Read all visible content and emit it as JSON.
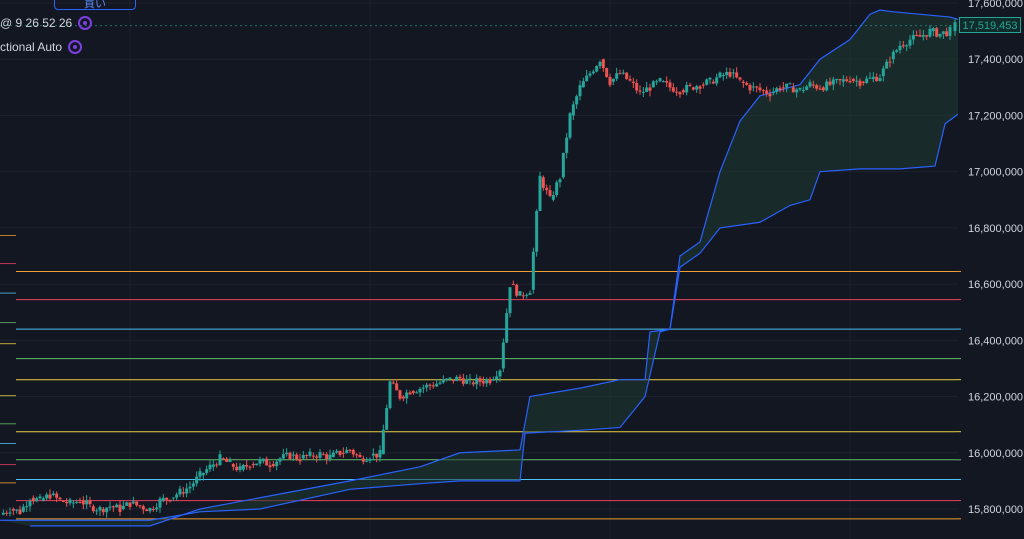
{
  "header": {
    "buy_button_label": "買い",
    "legend_line_1": "@ 9 26 52 26",
    "legend_line_2": "ctional Auto"
  },
  "current_price_label": "17,519,453",
  "colors": {
    "background": "#131722",
    "up": "#26a69a",
    "down": "#ef5350",
    "cloud_line": "#2962ff",
    "cloud_fill": "#1d3b30",
    "grid": "#1e222d"
  },
  "chart_data": {
    "type": "candlestick",
    "ylim": [
      15760000,
      17610000
    ],
    "y_ticks": [
      "15,800,000",
      "16,000,000",
      "16,200,000",
      "16,400,000",
      "16,600,000",
      "16,800,000",
      "17,000,000",
      "17,200,000",
      "17,400,000",
      "17,600,000"
    ],
    "y_tick_values": [
      15800000,
      16000000,
      16200000,
      16400000,
      16600000,
      16800000,
      17000000,
      17200000,
      17400000,
      17600000
    ],
    "last_price": 17519453,
    "horizontal_levels": [
      {
        "value": 16645000,
        "color": "#f0a030"
      },
      {
        "value": 16545000,
        "color": "#e84060"
      },
      {
        "value": 16440000,
        "color": "#4fc3f7"
      },
      {
        "value": 16335000,
        "color": "#66bb6a"
      },
      {
        "value": 16260000,
        "color": "#e8d040"
      },
      {
        "value": 16075000,
        "color": "#e8d040"
      },
      {
        "value": 15975000,
        "color": "#66bb6a"
      },
      {
        "value": 15905000,
        "color": "#4fc3f7"
      },
      {
        "value": 15830000,
        "color": "#e84060"
      },
      {
        "value": 15765000,
        "color": "#f0a030"
      }
    ],
    "price_path": [
      [
        0,
        15780000
      ],
      [
        10,
        15800000
      ],
      [
        20,
        15790000
      ],
      [
        30,
        15840000
      ],
      [
        40,
        15830000
      ],
      [
        50,
        15850000
      ],
      [
        60,
        15830000
      ],
      [
        70,
        15820000
      ],
      [
        80,
        15830000
      ],
      [
        90,
        15810000
      ],
      [
        100,
        15800000
      ],
      [
        110,
        15810000
      ],
      [
        120,
        15800000
      ],
      [
        130,
        15820000
      ],
      [
        140,
        15810000
      ],
      [
        150,
        15800000
      ],
      [
        160,
        15830000
      ],
      [
        170,
        15840000
      ],
      [
        180,
        15860000
      ],
      [
        190,
        15880000
      ],
      [
        200,
        15920000
      ],
      [
        210,
        15950000
      ],
      [
        220,
        15980000
      ],
      [
        230,
        15960000
      ],
      [
        240,
        15940000
      ],
      [
        250,
        15960000
      ],
      [
        260,
        15970000
      ],
      [
        270,
        15960000
      ],
      [
        280,
        15980000
      ],
      [
        290,
        15990000
      ],
      [
        300,
        15980000
      ],
      [
        310,
        15990000
      ],
      [
        320,
        15995000
      ],
      [
        330,
        15985000
      ],
      [
        340,
        16000000
      ],
      [
        350,
        16010000
      ],
      [
        360,
        15980000
      ],
      [
        370,
        15990000
      ],
      [
        380,
        15995000
      ],
      [
        390,
        16250000
      ],
      [
        400,
        16200000
      ],
      [
        410,
        16220000
      ],
      [
        420,
        16230000
      ],
      [
        430,
        16240000
      ],
      [
        440,
        16250000
      ],
      [
        450,
        16260000
      ],
      [
        460,
        16265000
      ],
      [
        470,
        16250000
      ],
      [
        480,
        16255000
      ],
      [
        490,
        16260000
      ],
      [
        500,
        16300000
      ],
      [
        510,
        16600000
      ],
      [
        520,
        16560000
      ],
      [
        530,
        16580000
      ],
      [
        540,
        16980000
      ],
      [
        550,
        16900000
      ],
      [
        560,
        16980000
      ],
      [
        570,
        17200000
      ],
      [
        580,
        17300000
      ],
      [
        590,
        17350000
      ],
      [
        600,
        17400000
      ],
      [
        610,
        17320000
      ],
      [
        620,
        17350000
      ],
      [
        630,
        17320000
      ],
      [
        640,
        17280000
      ],
      [
        650,
        17300000
      ],
      [
        660,
        17320000
      ],
      [
        670,
        17300000
      ],
      [
        680,
        17290000
      ],
      [
        690,
        17300000
      ],
      [
        700,
        17310000
      ],
      [
        710,
        17320000
      ],
      [
        720,
        17340000
      ],
      [
        730,
        17350000
      ],
      [
        740,
        17320000
      ],
      [
        750,
        17300000
      ],
      [
        760,
        17290000
      ],
      [
        770,
        17280000
      ],
      [
        780,
        17300000
      ],
      [
        790,
        17300000
      ],
      [
        800,
        17290000
      ],
      [
        810,
        17310000
      ],
      [
        820,
        17300000
      ],
      [
        830,
        17310000
      ],
      [
        840,
        17320000
      ],
      [
        850,
        17330000
      ],
      [
        860,
        17320000
      ],
      [
        870,
        17330000
      ],
      [
        880,
        17340000
      ],
      [
        890,
        17400000
      ],
      [
        900,
        17450000
      ],
      [
        910,
        17470000
      ],
      [
        920,
        17480000
      ],
      [
        930,
        17500000
      ],
      [
        940,
        17490000
      ],
      [
        950,
        17500000
      ],
      [
        955,
        17519453
      ]
    ],
    "cloud_upper": [
      [
        30,
        15740000
      ],
      [
        150,
        15740000
      ],
      [
        200,
        15800000
      ],
      [
        260,
        15840000
      ],
      [
        350,
        15900000
      ],
      [
        420,
        15950000
      ],
      [
        460,
        16000000
      ],
      [
        520,
        16010000
      ],
      [
        530,
        16200000
      ],
      [
        580,
        16230000
      ],
      [
        620,
        16260000
      ],
      [
        645,
        16260000
      ],
      [
        650,
        16430000
      ],
      [
        670,
        16440000
      ],
      [
        680,
        16700000
      ],
      [
        700,
        16750000
      ],
      [
        720,
        17000000
      ],
      [
        740,
        17180000
      ],
      [
        760,
        17270000
      ],
      [
        800,
        17310000
      ],
      [
        820,
        17400000
      ],
      [
        850,
        17470000
      ],
      [
        870,
        17560000
      ],
      [
        880,
        17575000
      ],
      [
        890,
        17570000
      ],
      [
        950,
        17550000
      ],
      [
        960,
        17540000
      ]
    ],
    "cloud_lower": [
      [
        0,
        15760000
      ],
      [
        150,
        15760000
      ],
      [
        200,
        15790000
      ],
      [
        260,
        15800000
      ],
      [
        350,
        15870000
      ],
      [
        420,
        15890000
      ],
      [
        460,
        15900000
      ],
      [
        520,
        15900000
      ],
      [
        525,
        16070000
      ],
      [
        580,
        16080000
      ],
      [
        620,
        16090000
      ],
      [
        645,
        16200000
      ],
      [
        660,
        16430000
      ],
      [
        670,
        16440000
      ],
      [
        680,
        16660000
      ],
      [
        700,
        16710000
      ],
      [
        720,
        16800000
      ],
      [
        760,
        16820000
      ],
      [
        790,
        16880000
      ],
      [
        810,
        16900000
      ],
      [
        820,
        17000000
      ],
      [
        860,
        17010000
      ],
      [
        900,
        17010000
      ],
      [
        935,
        17020000
      ],
      [
        945,
        17170000
      ],
      [
        960,
        17210000
      ]
    ]
  }
}
